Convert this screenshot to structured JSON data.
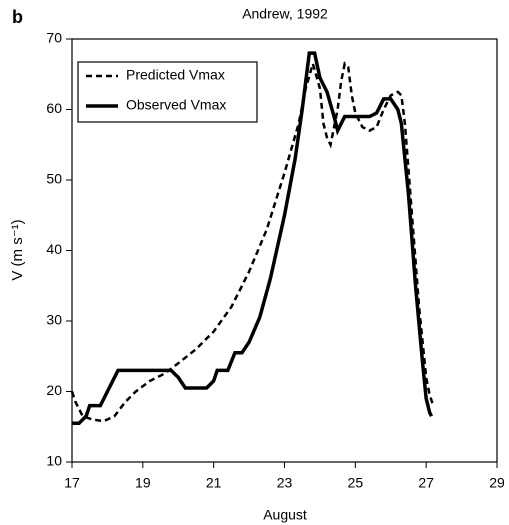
{
  "panel_label": "b",
  "chart_data": {
    "type": "line",
    "title": "Andrew, 1992",
    "x_label": "August",
    "y_label": "V (m s⁻¹)",
    "xlim": [
      17,
      29
    ],
    "xticks": [
      17,
      19,
      21,
      23,
      25,
      27,
      29
    ],
    "ylim": [
      10,
      70
    ],
    "yticks": [
      10,
      20,
      30,
      40,
      50,
      60,
      70
    ],
    "legend": "top-left",
    "series": [
      {
        "name": "Predicted Vmax",
        "color": "#000000",
        "dash": true,
        "x": [
          17.0,
          17.1,
          17.3,
          17.6,
          17.9,
          18.2,
          18.5,
          18.8,
          19.2,
          19.6,
          20.0,
          20.5,
          21.0,
          21.5,
          22.0,
          22.5,
          23.0,
          23.4,
          23.6,
          23.8,
          24.0,
          24.1,
          24.2,
          24.3,
          24.5,
          24.6,
          24.7,
          24.8,
          24.9,
          25.0,
          25.2,
          25.4,
          25.6,
          25.8,
          26.0,
          26.2,
          26.3,
          26.4,
          26.6,
          26.8,
          27.0,
          27.1,
          27.2
        ],
        "values": [
          20,
          18.5,
          16.5,
          16,
          15.8,
          16.5,
          18.5,
          20,
          21.5,
          22.5,
          24,
          26,
          28.5,
          32,
          37,
          43,
          51,
          58,
          63,
          66.5,
          63,
          58,
          56,
          55,
          60,
          64,
          66.5,
          66,
          62,
          59.5,
          57.5,
          57,
          57.5,
          60,
          62,
          62.5,
          62,
          58,
          45,
          32,
          22,
          19.5,
          18
        ]
      },
      {
        "name": "Observed Vmax",
        "color": "#000000",
        "dash": false,
        "x": [
          17.0,
          17.2,
          17.4,
          17.5,
          17.8,
          18.0,
          18.3,
          19.0,
          19.8,
          20.0,
          20.2,
          20.8,
          21.0,
          21.1,
          21.4,
          21.6,
          21.8,
          22.0,
          22.3,
          22.6,
          23.0,
          23.3,
          23.5,
          23.7,
          23.85,
          24.0,
          24.2,
          24.4,
          24.5,
          24.7,
          25.0,
          25.4,
          25.6,
          25.8,
          26.0,
          26.2,
          26.3,
          26.5,
          26.7,
          26.9,
          27.0,
          27.1,
          27.15
        ],
        "values": [
          15.5,
          15.5,
          16.5,
          18,
          18,
          20,
          23,
          23,
          23,
          22,
          20.5,
          20.5,
          21.5,
          23,
          23,
          25.5,
          25.5,
          27,
          30.5,
          36,
          45,
          53,
          60,
          68,
          68,
          64.5,
          62.5,
          59,
          57,
          59,
          59,
          59,
          59.5,
          61.5,
          61.5,
          60,
          58,
          48,
          35,
          24,
          19,
          17,
          16.5
        ]
      }
    ]
  }
}
